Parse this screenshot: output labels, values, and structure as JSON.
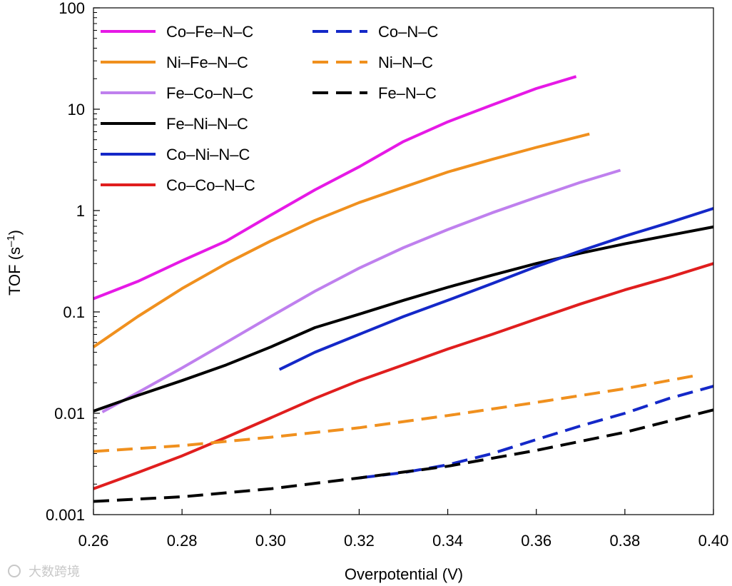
{
  "chart_data": {
    "type": "line",
    "xlabel": "Overpotential (V)",
    "ylabel_main": "TOF (s",
    "ylabel_sup": "–1",
    "ylabel_close": ")",
    "yscale": "log",
    "xlim": [
      0.26,
      0.4
    ],
    "ylim": [
      0.001,
      100
    ],
    "xticks": [
      0.26,
      0.28,
      0.3,
      0.32,
      0.34,
      0.36,
      0.38,
      0.4
    ],
    "xtick_labels": [
      "0.26",
      "0.28",
      "0.30",
      "0.32",
      "0.34",
      "0.36",
      "0.38",
      "0.40"
    ],
    "yticks": [
      0.001,
      0.01,
      0.1,
      1,
      10,
      100
    ],
    "ytick_labels": [
      "0.001",
      "0.01",
      "0.1",
      "1",
      "10",
      "100"
    ],
    "series": [
      {
        "name": "Co–Fe–N–C",
        "color": "#e619e6",
        "dash": "solid",
        "x": [
          0.26,
          0.27,
          0.28,
          0.29,
          0.3,
          0.31,
          0.32,
          0.33,
          0.34,
          0.35,
          0.36,
          0.369
        ],
        "y": [
          0.135,
          0.2,
          0.32,
          0.5,
          0.9,
          1.6,
          2.7,
          4.8,
          7.5,
          11,
          16,
          21
        ]
      },
      {
        "name": "Ni–Fe–N–C",
        "color": "#f0901e",
        "dash": "solid",
        "x": [
          0.26,
          0.27,
          0.28,
          0.29,
          0.3,
          0.31,
          0.32,
          0.33,
          0.34,
          0.35,
          0.36,
          0.372
        ],
        "y": [
          0.045,
          0.09,
          0.17,
          0.3,
          0.5,
          0.8,
          1.2,
          1.7,
          2.4,
          3.2,
          4.2,
          5.7
        ]
      },
      {
        "name": "Fe–Co–N–C",
        "color": "#bf80ee",
        "dash": "solid",
        "x": [
          0.262,
          0.27,
          0.28,
          0.29,
          0.3,
          0.31,
          0.32,
          0.33,
          0.34,
          0.35,
          0.36,
          0.37,
          0.379
        ],
        "y": [
          0.0103,
          0.016,
          0.028,
          0.05,
          0.09,
          0.16,
          0.27,
          0.43,
          0.65,
          0.95,
          1.35,
          1.9,
          2.5
        ]
      },
      {
        "name": "Fe–Ni–N–C",
        "color": "#000000",
        "dash": "solid",
        "x": [
          0.26,
          0.27,
          0.28,
          0.29,
          0.3,
          0.31,
          0.32,
          0.33,
          0.34,
          0.35,
          0.36,
          0.37,
          0.38,
          0.39,
          0.4
        ],
        "y": [
          0.0105,
          0.015,
          0.021,
          0.03,
          0.045,
          0.07,
          0.095,
          0.13,
          0.175,
          0.23,
          0.3,
          0.38,
          0.47,
          0.57,
          0.69
        ]
      },
      {
        "name": "Co–Ni–N–C",
        "color": "#1428c8",
        "dash": "solid",
        "x": [
          0.302,
          0.31,
          0.32,
          0.33,
          0.34,
          0.35,
          0.36,
          0.37,
          0.38,
          0.39,
          0.4
        ],
        "y": [
          0.027,
          0.04,
          0.06,
          0.09,
          0.13,
          0.19,
          0.28,
          0.4,
          0.56,
          0.76,
          1.05
        ]
      },
      {
        "name": "Co–Co–N–C",
        "color": "#e01e1e",
        "dash": "solid",
        "x": [
          0.26,
          0.27,
          0.28,
          0.29,
          0.3,
          0.31,
          0.32,
          0.33,
          0.34,
          0.35,
          0.36,
          0.37,
          0.38,
          0.39,
          0.4
        ],
        "y": [
          0.0018,
          0.0026,
          0.0038,
          0.0058,
          0.009,
          0.014,
          0.021,
          0.03,
          0.043,
          0.06,
          0.085,
          0.12,
          0.165,
          0.22,
          0.3
        ]
      },
      {
        "name": "Co–N–C",
        "color": "#1428c8",
        "dash": "dashed",
        "x": [
          0.32,
          0.33,
          0.34,
          0.35,
          0.36,
          0.37,
          0.38,
          0.39,
          0.4
        ],
        "y": [
          0.0023,
          0.0026,
          0.0031,
          0.004,
          0.0055,
          0.0075,
          0.01,
          0.014,
          0.0185
        ]
      },
      {
        "name": "Ni–N–C",
        "color": "#f0901e",
        "dash": "dashed",
        "x": [
          0.26,
          0.28,
          0.3,
          0.32,
          0.34,
          0.36,
          0.38,
          0.397
        ],
        "y": [
          0.0042,
          0.0048,
          0.0058,
          0.0072,
          0.0095,
          0.0128,
          0.0175,
          0.024
        ]
      },
      {
        "name": "Fe–N–C",
        "color": "#000000",
        "dash": "dashed",
        "x": [
          0.26,
          0.28,
          0.3,
          0.32,
          0.34,
          0.36,
          0.38,
          0.4
        ],
        "y": [
          0.00135,
          0.0015,
          0.0018,
          0.0023,
          0.003,
          0.0043,
          0.0065,
          0.0108
        ]
      }
    ],
    "legend": {
      "columns": [
        [
          "Co–Fe–N–C",
          "Ni–Fe–N–C",
          "Fe–Co–N–C",
          "Fe–Ni–N–C",
          "Co–Ni–N–C",
          "Co–Co–N–C"
        ],
        [
          "Co–N–C",
          "Ni–N–C",
          "Fe–N–C"
        ]
      ],
      "placement": "top-left"
    }
  },
  "watermark": {
    "text": "大数跨境"
  }
}
